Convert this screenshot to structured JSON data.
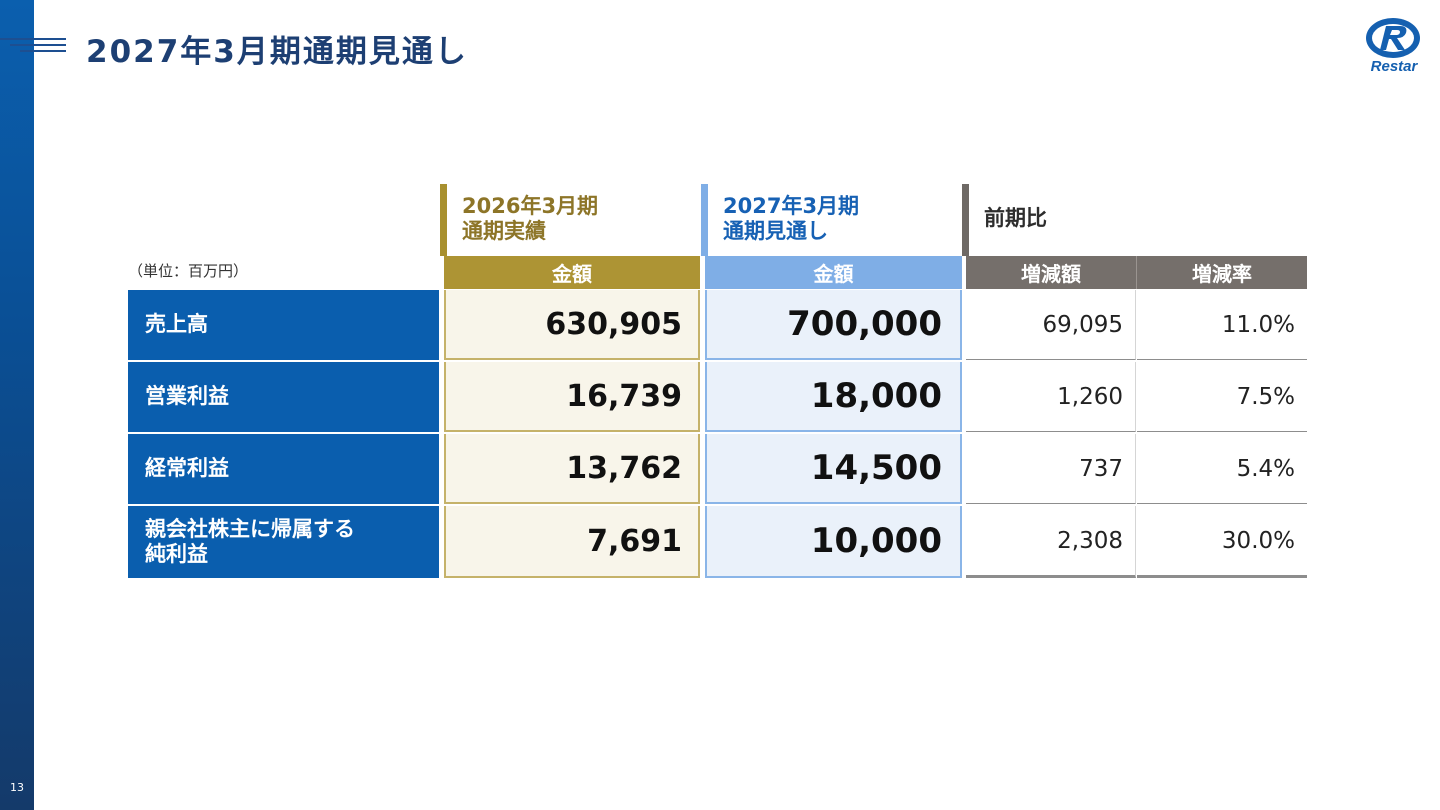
{
  "page": {
    "title": "2027年3月期通期見通し",
    "page_number": "13",
    "logo_text": "Restar",
    "unit_note": "（単位：百万円）"
  },
  "headers": {
    "fy2026_line1": "2026年3月期",
    "fy2026_line2": "通期実績",
    "fy2027_line1": "2027年3月期",
    "fy2027_line2": "通期見通し",
    "comparison": "前期比"
  },
  "columns": {
    "fy2026_amount": "金額",
    "fy2027_amount": "金額",
    "change_amount": "増減額",
    "change_rate": "増減率"
  },
  "colors": {
    "brand_blue": "#0a5eae",
    "gold": "#ad9434",
    "light_blue": "#7faee6",
    "gray": "#756f6b"
  },
  "rows": [
    {
      "label_line1": "売上高",
      "label_line2": "",
      "fy2026": "630,905",
      "fy2027": "700,000",
      "change": "69,095",
      "rate": "11.0%"
    },
    {
      "label_line1": "営業利益",
      "label_line2": "",
      "fy2026": "16,739",
      "fy2027": "18,000",
      "change": "1,260",
      "rate": "7.5%"
    },
    {
      "label_line1": "経常利益",
      "label_line2": "",
      "fy2026": "13,762",
      "fy2027": "14,500",
      "change": "737",
      "rate": "5.4%"
    },
    {
      "label_line1": "親会社株主に帰属する",
      "label_line2": "純利益",
      "fy2026": "7,691",
      "fy2027": "10,000",
      "change": "2,308",
      "rate": "30.0%"
    }
  ]
}
